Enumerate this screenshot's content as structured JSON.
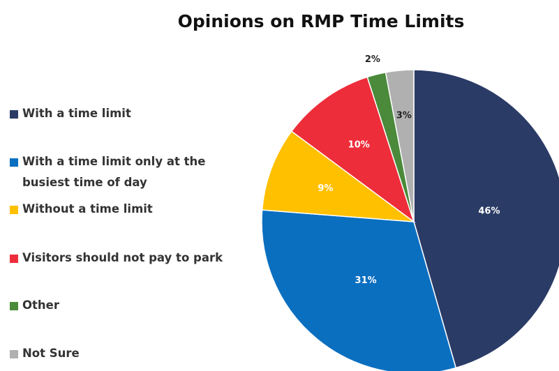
{
  "chart_data": {
    "type": "pie",
    "title": "Opinions on RMP Time Limits",
    "categories": [
      "With a time limit",
      "With a time limit only at the busiest time of day",
      "Without a time limit",
      "Visitors should not pay to park",
      "Other",
      "Not Sure"
    ],
    "values": [
      46,
      31,
      9,
      10,
      2,
      3
    ],
    "value_labels": [
      "46%",
      "31%",
      "9%",
      "10%",
      "2%",
      "3%"
    ],
    "colors": [
      "#2a3b66",
      "#0b6fc0",
      "#ffc000",
      "#ee2d3a",
      "#4a8a3a",
      "#b0b0b0"
    ],
    "legend": "left"
  }
}
